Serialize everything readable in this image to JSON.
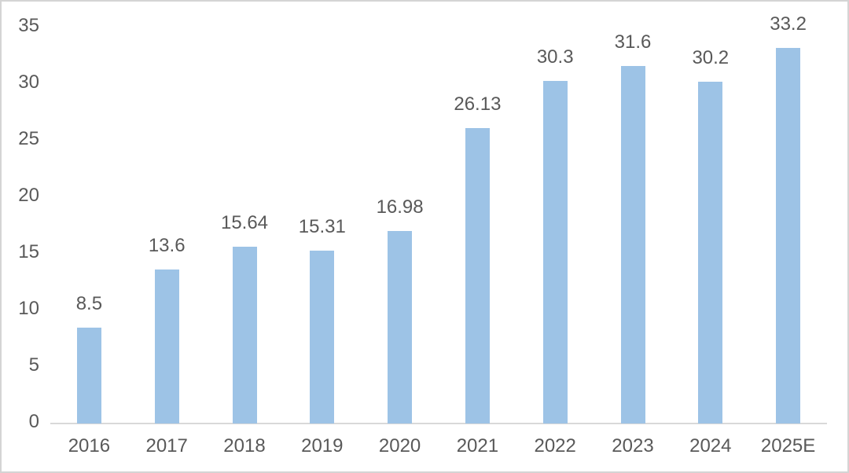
{
  "chart_data": {
    "type": "bar",
    "title": "",
    "xlabel": "",
    "ylabel": "",
    "categories": [
      "2016",
      "2017",
      "2018",
      "2019",
      "2020",
      "2021",
      "2022",
      "2023",
      "2024",
      "2025E"
    ],
    "values": [
      8.5,
      13.6,
      15.64,
      15.31,
      16.98,
      26.13,
      30.3,
      31.6,
      30.2,
      33.2
    ],
    "data_labels": [
      "8.5",
      "13.6",
      "15.64",
      "15.31",
      "16.98",
      "26.13",
      "30.3",
      "31.6",
      "30.2",
      "33.2"
    ],
    "ylim": [
      0,
      35
    ],
    "yticks": [
      0,
      5,
      10,
      15,
      20,
      25,
      30,
      35
    ],
    "grid": false,
    "legend": null,
    "colors": {
      "bar_fill": "#9DC3E6",
      "label_text": "#595959",
      "axis_line": "#D9D9D9",
      "frame_border": "#D4D4D4",
      "background": "#FFFFFF"
    }
  }
}
